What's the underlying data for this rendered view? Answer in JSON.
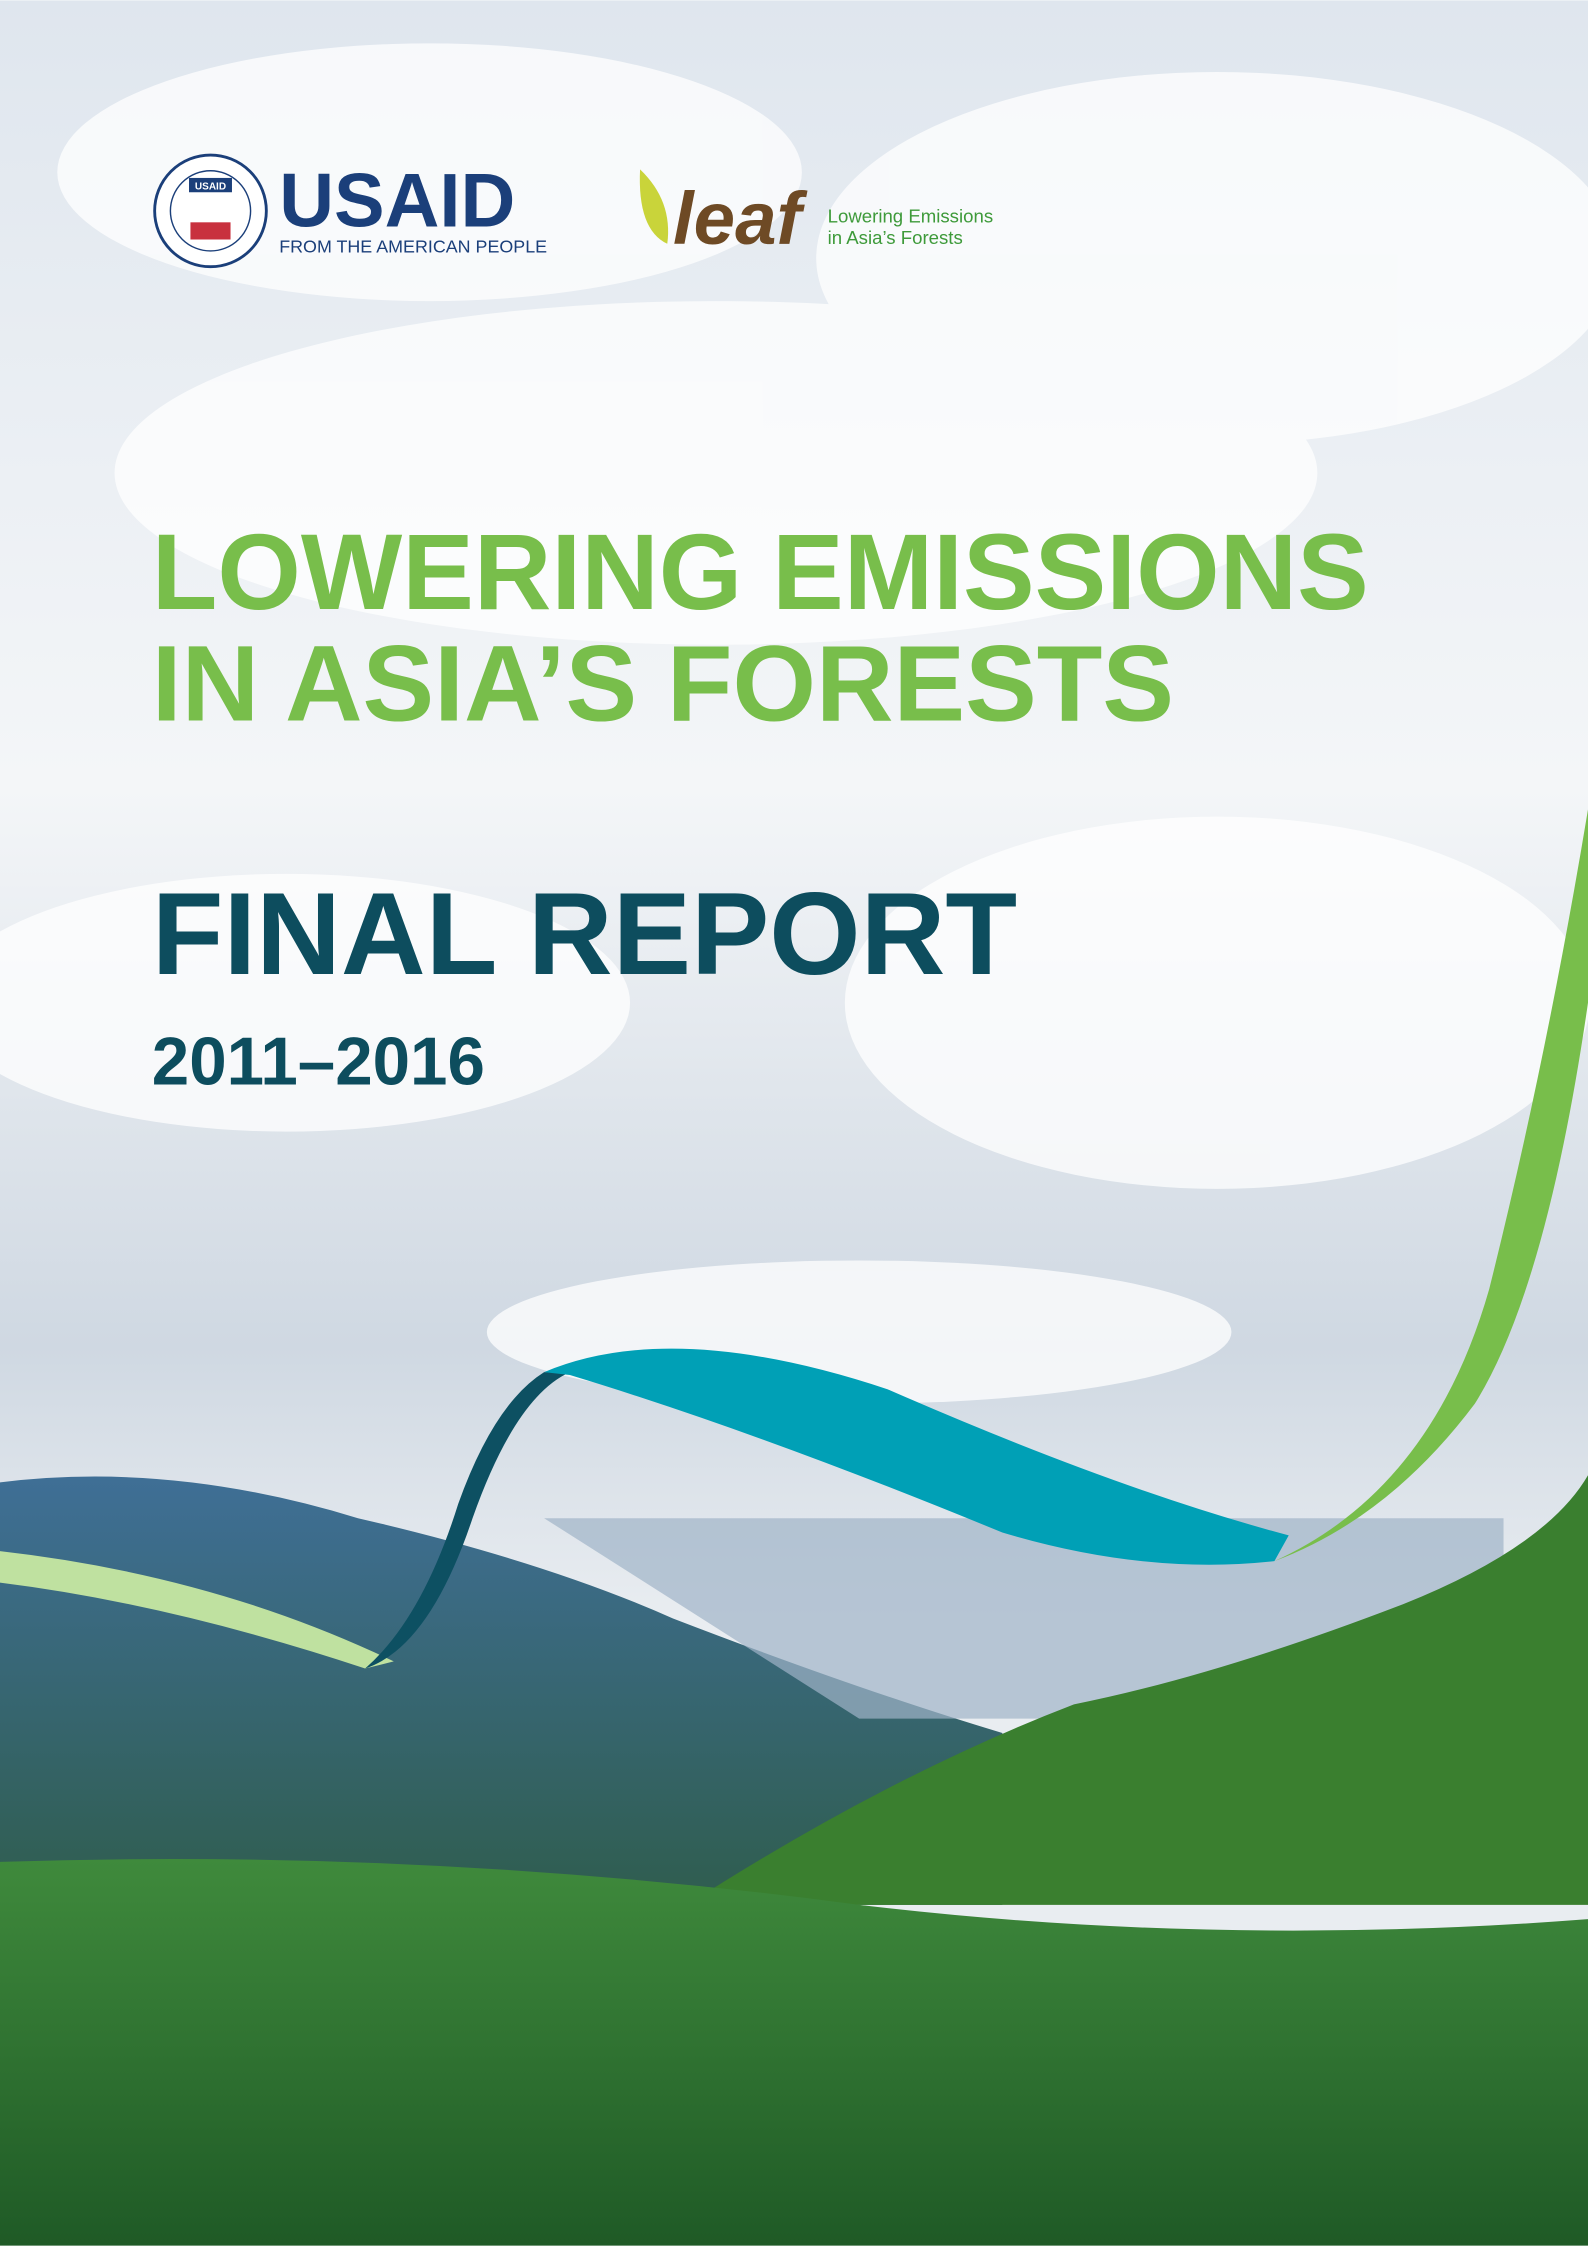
{
  "header": {
    "usaid_seal": "USAID",
    "usaid_name": "USAID",
    "usaid_tagline": "FROM THE AMERICAN PEOPLE",
    "leaf_logo": "leaf",
    "leaf_line1": "Lowering Emissions",
    "leaf_line2": "in Asia’s Forests"
  },
  "cover": {
    "title_line1": "LOWERING EMISSIONS",
    "title_line2": "IN ASIA’S FORESTS",
    "report": "FINAL REPORT",
    "years": "2011–2016"
  }
}
